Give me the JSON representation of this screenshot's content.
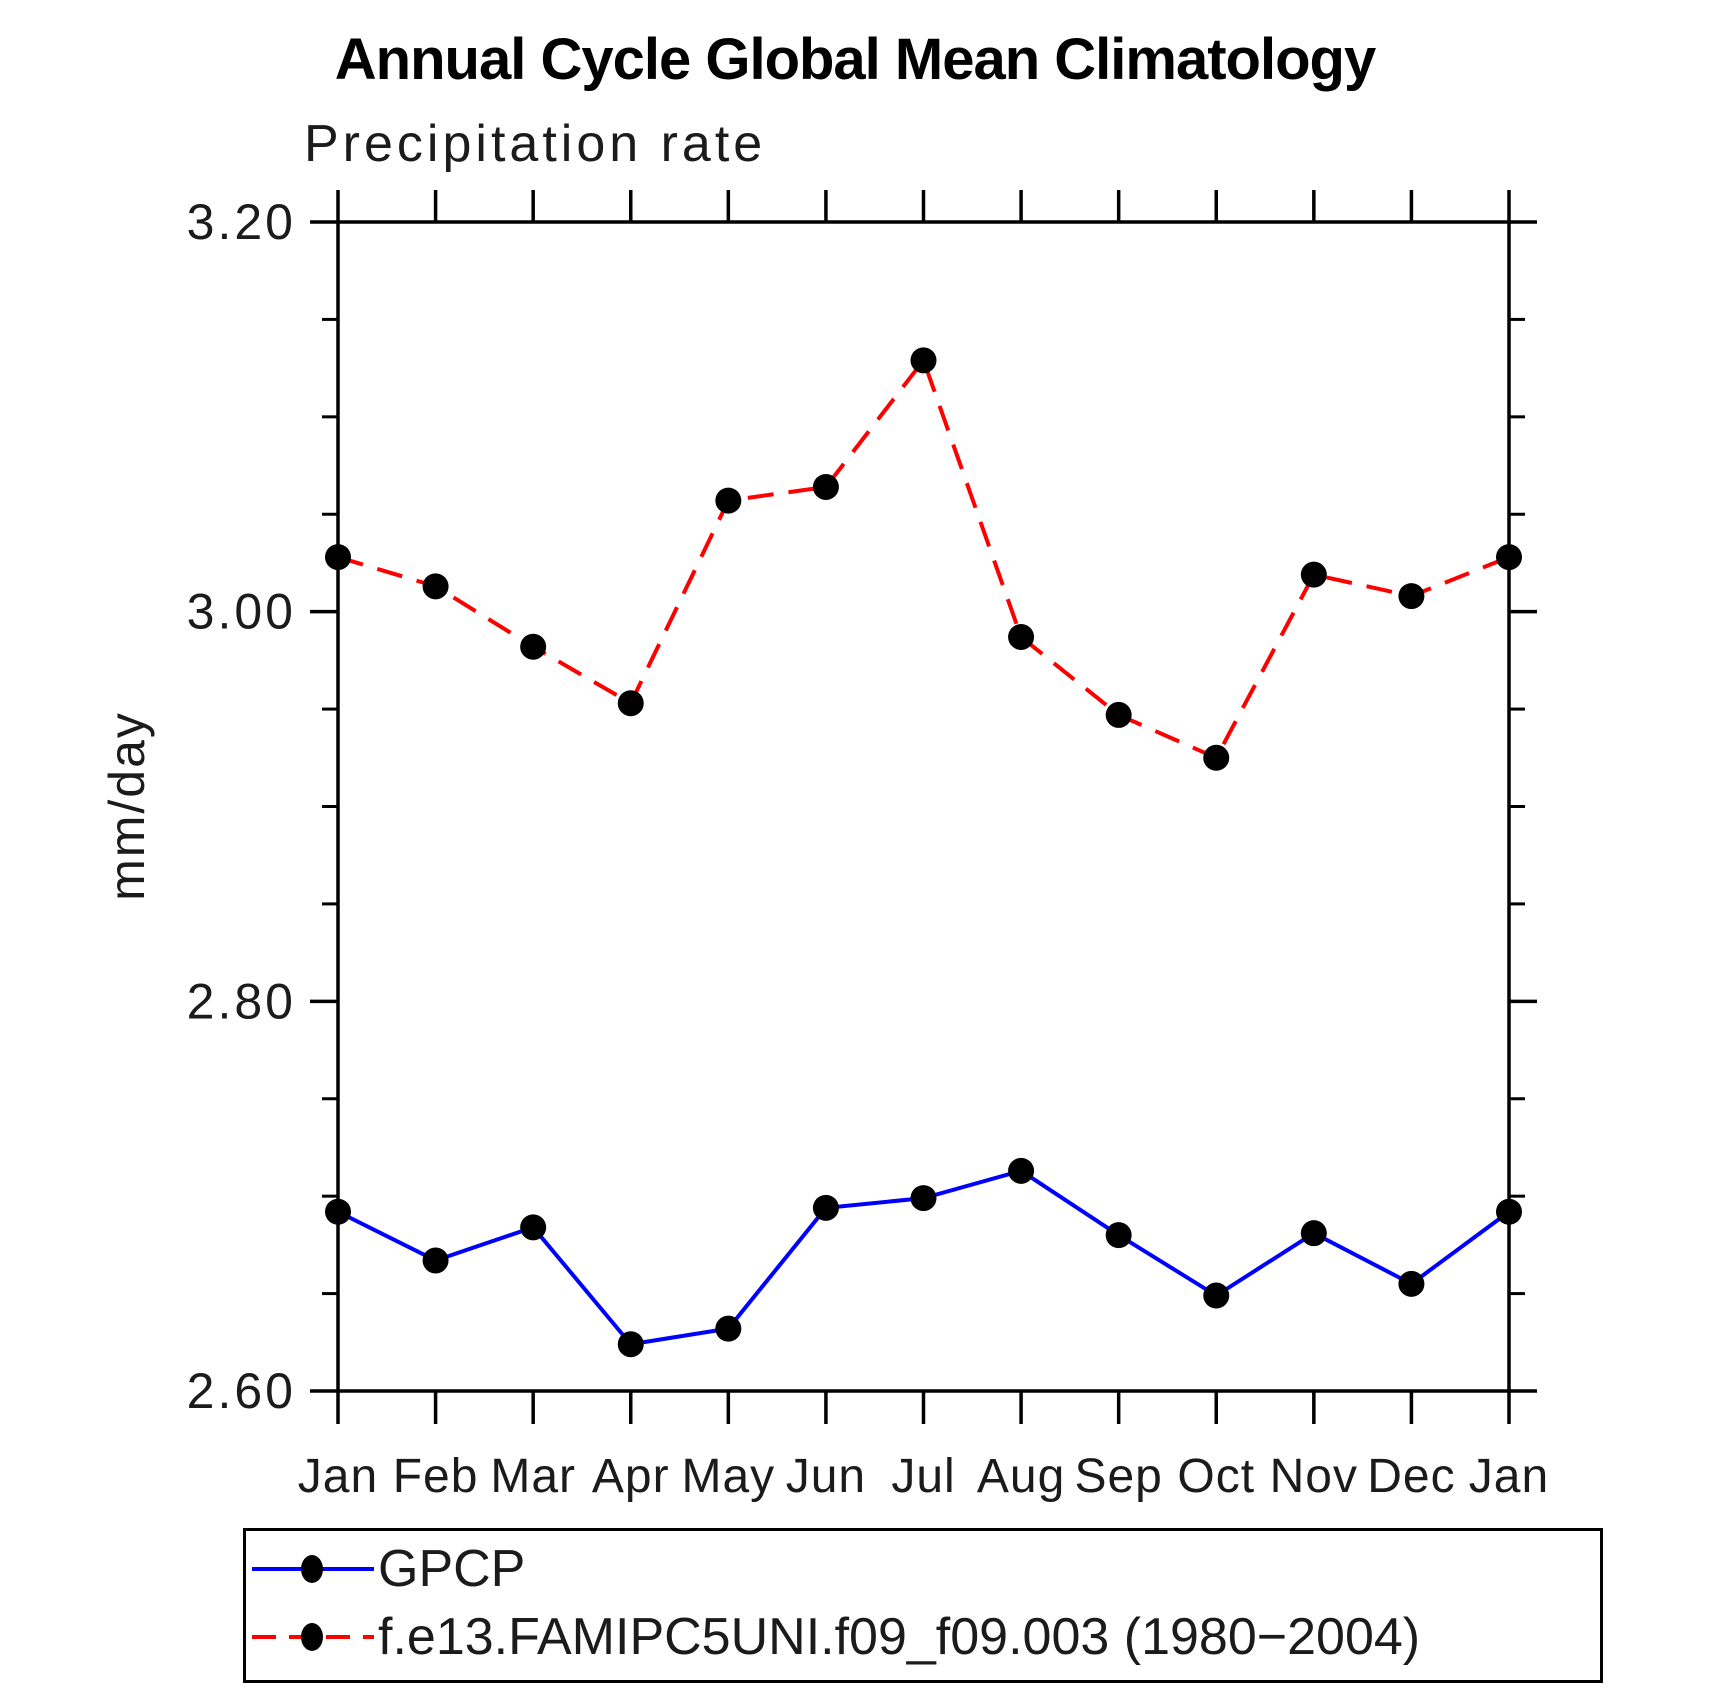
{
  "title": "Annual Cycle Global Mean Climatology",
  "subtitle": "Precipitation rate",
  "chart_data": {
    "type": "line",
    "title": "Annual Cycle Global Mean Climatology",
    "subtitle": "Precipitation rate",
    "ylabel": "mm/day",
    "xlabel": "",
    "ylim": [
      2.6,
      3.2
    ],
    "y_ticks": [
      {
        "value": 3.2,
        "label": "3.20"
      },
      {
        "value": 3.0,
        "label": "3.00"
      },
      {
        "value": 2.8,
        "label": "2.80"
      },
      {
        "value": 2.6,
        "label": "2.60"
      }
    ],
    "y_minor_step": 0.05,
    "x_categories": [
      "Jan",
      "Feb",
      "Mar",
      "Apr",
      "May",
      "Jun",
      "Jul",
      "Aug",
      "Sep",
      "Oct",
      "Nov",
      "Dec",
      "Jan"
    ],
    "grid": false,
    "legend_position": "bottom-left-box",
    "axis_color": "#000000",
    "series": [
      {
        "name": "GPCP",
        "line_color": "#0000ff",
        "line_style": "solid",
        "marker": "filled-circle",
        "marker_color": "#000000",
        "values": [
          2.692,
          2.667,
          2.684,
          2.624,
          2.632,
          2.694,
          2.699,
          2.713,
          2.68,
          2.649,
          2.681,
          2.655,
          2.692
        ]
      },
      {
        "name": "f.e13.FAMIPC5UNI.f09_f09.003 (1980−2004)",
        "line_color": "#ff0000",
        "line_style": "dashed",
        "marker": "filled-circle",
        "marker_color": "#000000",
        "values": [
          3.028,
          3.013,
          2.982,
          2.953,
          3.057,
          3.064,
          3.129,
          2.987,
          2.947,
          2.925,
          3.019,
          3.008,
          3.028
        ]
      }
    ]
  }
}
